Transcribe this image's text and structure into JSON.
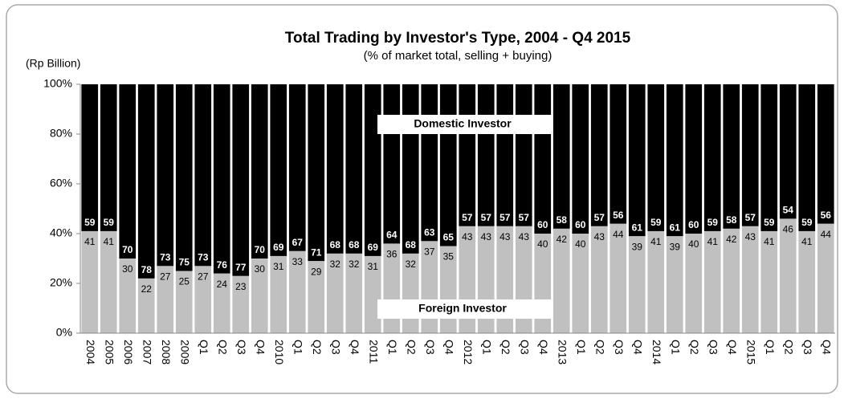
{
  "chart_data": {
    "type": "stacked_bar",
    "title": "Total Trading by Investor's Type, 2004 - Q4 2015",
    "subtitle": "(% of market total, selling + buying)",
    "y_label": "(Rp Billion)",
    "categories": [
      "2004",
      "2005",
      "2006",
      "2007",
      "2008",
      "2009",
      "Q1",
      "Q2",
      "Q3",
      "Q4",
      "2010",
      "Q1",
      "Q2",
      "Q3",
      "Q4",
      "2011",
      "Q1",
      "Q2",
      "Q3",
      "Q4",
      "2012",
      "Q1",
      "Q2",
      "Q3",
      "Q4",
      "2013",
      "Q1",
      "Q2",
      "Q3",
      "Q4",
      "2014",
      "Q1",
      "Q2",
      "Q3",
      "Q4",
      "2015",
      "Q1",
      "Q2",
      "Q3",
      "Q4"
    ],
    "series": [
      {
        "name": "Foreign Investor",
        "color": "#c0c0c0",
        "values": [
          41,
          41,
          30,
          22,
          27,
          25,
          27,
          24,
          23,
          30,
          31,
          33,
          29,
          32,
          32,
          31,
          36,
          32,
          37,
          35,
          43,
          43,
          43,
          43,
          40,
          42,
          40,
          43,
          44,
          39,
          41,
          39,
          40,
          41,
          42,
          43,
          41,
          46,
          41,
          44
        ]
      },
      {
        "name": "Domestic Investor",
        "color": "#000000",
        "values": [
          59,
          59,
          70,
          78,
          73,
          75,
          73,
          76,
          77,
          70,
          69,
          67,
          71,
          68,
          68,
          69,
          64,
          68,
          63,
          65,
          57,
          57,
          57,
          57,
          60,
          58,
          60,
          57,
          56,
          61,
          59,
          61,
          60,
          59,
          58,
          57,
          59,
          54,
          59,
          56
        ]
      }
    ],
    "ylim": [
      0,
      100
    ],
    "yticks": [
      {
        "value": 0,
        "label": "0%"
      },
      {
        "value": 20,
        "label": "20%"
      },
      {
        "value": 40,
        "label": "40%"
      },
      {
        "value": 60,
        "label": "60%"
      },
      {
        "value": 80,
        "label": "80%"
      },
      {
        "value": 100,
        "label": "100%"
      }
    ]
  }
}
